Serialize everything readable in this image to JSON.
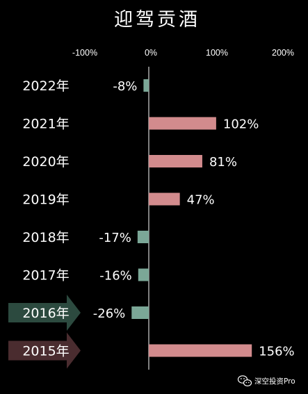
{
  "chart_data": {
    "type": "bar",
    "orientation": "horizontal",
    "title": "迎驾贡酒",
    "categories": [
      "2022年",
      "2021年",
      "2020年",
      "2019年",
      "2018年",
      "2017年",
      "2016年",
      "2015年"
    ],
    "values": [
      -8,
      102,
      81,
      47,
      -17,
      -16,
      -26,
      156
    ],
    "value_labels": [
      "-8%",
      "102%",
      "81%",
      "47%",
      "-17%",
      "-16%",
      "-26%",
      "156%"
    ],
    "xlim": [
      -100,
      200
    ],
    "x_ticks": [
      "-100%",
      "0%",
      "100%",
      "200%"
    ],
    "x_tick_values": [
      -100,
      0,
      100,
      200
    ],
    "x_axis_position": "top",
    "grid": false,
    "legend": "none",
    "highlighted_categories": [
      "2016年",
      "2015年"
    ],
    "colors": {
      "background": "#000000",
      "positive": "#d28b8d",
      "negative": "#7ba797",
      "text": "#ffffff",
      "highlight_arrow_2016": "#2c4a3f",
      "highlight_arrow_2015": "#4a2c2f"
    }
  },
  "watermark": {
    "icon": "wechat-icon",
    "text": "深空投资Pro"
  }
}
